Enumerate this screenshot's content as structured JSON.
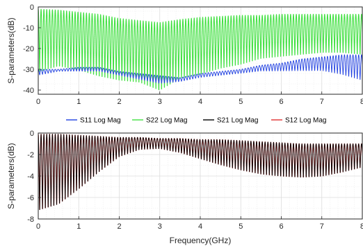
{
  "chart_data": [
    {
      "type": "line",
      "panel": "top",
      "title": "",
      "xlabel": "",
      "ylabel": "S-parameters(dB)",
      "xlim": [
        0,
        8
      ],
      "ylim": [
        -42,
        0
      ],
      "xticks": [
        "0",
        "1",
        "2",
        "3",
        "4",
        "5",
        "6",
        "7",
        "8"
      ],
      "yticks": [
        "0",
        "-10",
        "-20",
        "-30",
        "-40"
      ],
      "ytick_values": [
        0,
        -10,
        -20,
        -30,
        -40
      ],
      "grid": true,
      "ripple_period_ghz": 0.07,
      "series": [
        {
          "name": "S22 Log Mag",
          "color": "#40e040",
          "peak_x": [
            0,
            0.5,
            1,
            1.5,
            2,
            2.5,
            3,
            3.5,
            4,
            4.5,
            5,
            5.5,
            6,
            6.5,
            7,
            7.5,
            8
          ],
          "peak_y": [
            -1,
            -1.5,
            -2.5,
            -3.5,
            -5.5,
            -6.5,
            -7.5,
            -6,
            -5,
            -4.5,
            -4,
            -4,
            -3.5,
            -3.5,
            -3.5,
            -3.5,
            -3.5
          ],
          "trough_x": [
            0,
            0.5,
            1,
            1.5,
            2,
            2.5,
            3,
            3.5,
            4,
            4.5,
            5,
            5.5,
            6,
            6.5,
            7,
            7.5,
            8
          ],
          "trough_y": [
            -33,
            -30,
            -32,
            -35,
            -37,
            -38,
            -42,
            -36,
            -34,
            -31,
            -29,
            -26,
            -25,
            -24,
            -23,
            -23,
            -24
          ]
        },
        {
          "name": "S11 Log Mag",
          "color": "#1f3fe0",
          "peak_x": [
            0,
            0.5,
            1,
            1.5,
            2,
            2.5,
            3,
            3.5,
            4,
            4.5,
            5,
            5.5,
            6,
            6.5,
            7,
            7.5,
            8
          ],
          "peak_y": [
            -30,
            -30,
            -29,
            -29,
            -31,
            -32,
            -33,
            -34,
            -32,
            -31,
            -30,
            -28,
            -27,
            -25,
            -24,
            -23,
            -23
          ],
          "trough_x": [
            0,
            0.5,
            1,
            1.5,
            2,
            2.5,
            3,
            3.5,
            4,
            4.5,
            5,
            5.5,
            6,
            6.5,
            7,
            7.5,
            8
          ],
          "trough_y": [
            -33,
            -31,
            -31,
            -31,
            -33,
            -35,
            -37,
            -36,
            -34,
            -33,
            -32,
            -31,
            -31,
            -31,
            -31,
            -33,
            -36
          ]
        }
      ]
    },
    {
      "type": "line",
      "panel": "bottom",
      "title": "",
      "xlabel": "Frequency(GHz)",
      "ylabel": "S-parameters(dB)",
      "xlim": [
        0,
        8
      ],
      "ylim": [
        -8,
        0
      ],
      "xticks": [
        "0",
        "1",
        "2",
        "3",
        "4",
        "5",
        "6",
        "7",
        "8"
      ],
      "yticks": [
        "0",
        "-2",
        "-4",
        "-6",
        "-8"
      ],
      "ytick_values": [
        0,
        -2,
        -4,
        -6,
        -8
      ],
      "grid": true,
      "ripple_period_ghz": 0.07,
      "series": [
        {
          "name": "S12 Log Mag",
          "color": "#e03030",
          "peak_x": [
            0,
            0.5,
            1,
            1.5,
            2,
            2.5,
            3,
            3.5,
            4,
            4.5,
            5,
            5.5,
            6,
            6.5,
            7,
            7.5,
            8
          ],
          "peak_y": [
            -0.1,
            -0.1,
            -0.2,
            -0.3,
            -0.4,
            -0.4,
            -0.5,
            -0.5,
            -0.6,
            -0.6,
            -0.7,
            -0.8,
            -0.9,
            -1,
            -1,
            -1,
            -1
          ],
          "trough_x": [
            0,
            0.5,
            1,
            1.5,
            2,
            2.5,
            3,
            3.5,
            4,
            4.5,
            5,
            5.5,
            6,
            6.5,
            7,
            7.5,
            8
          ],
          "trough_y": [
            -7.6,
            -7,
            -5.5,
            -3.8,
            -2.3,
            -1.6,
            -1.5,
            -1.9,
            -2.5,
            -3.1,
            -3.6,
            -4,
            -4.2,
            -4.3,
            -4.2,
            -3.8,
            -3.3
          ]
        },
        {
          "name": "S21 Log Mag",
          "color": "#000000",
          "peak_x": [
            0,
            0.5,
            1,
            1.5,
            2,
            2.5,
            3,
            3.5,
            4,
            4.5,
            5,
            5.5,
            6,
            6.5,
            7,
            7.5,
            8
          ],
          "peak_y": [
            -0.1,
            -0.1,
            -0.2,
            -0.3,
            -0.4,
            -0.4,
            -0.5,
            -0.5,
            -0.6,
            -0.6,
            -0.7,
            -0.8,
            -0.9,
            -1,
            -1,
            -1,
            -1
          ],
          "trough_x": [
            0,
            0.5,
            1,
            1.5,
            2,
            2.5,
            3,
            3.5,
            4,
            4.5,
            5,
            5.5,
            6,
            6.5,
            7,
            7.5,
            8
          ],
          "trough_y": [
            -7.6,
            -7,
            -5.5,
            -3.8,
            -2.3,
            -1.6,
            -1.5,
            -1.9,
            -2.5,
            -3.1,
            -3.6,
            -4,
            -4.2,
            -4.3,
            -4.2,
            -3.8,
            -3.3
          ]
        }
      ]
    }
  ],
  "legend": {
    "position": "between panels",
    "entries": [
      {
        "label": "S11 Log Mag",
        "color": "#1f3fe0"
      },
      {
        "label": "S22 Log Mag",
        "color": "#40e040"
      },
      {
        "label": "S21 Log Mag",
        "color": "#000000"
      },
      {
        "label": "S12 Log Mag",
        "color": "#e03030"
      }
    ]
  }
}
